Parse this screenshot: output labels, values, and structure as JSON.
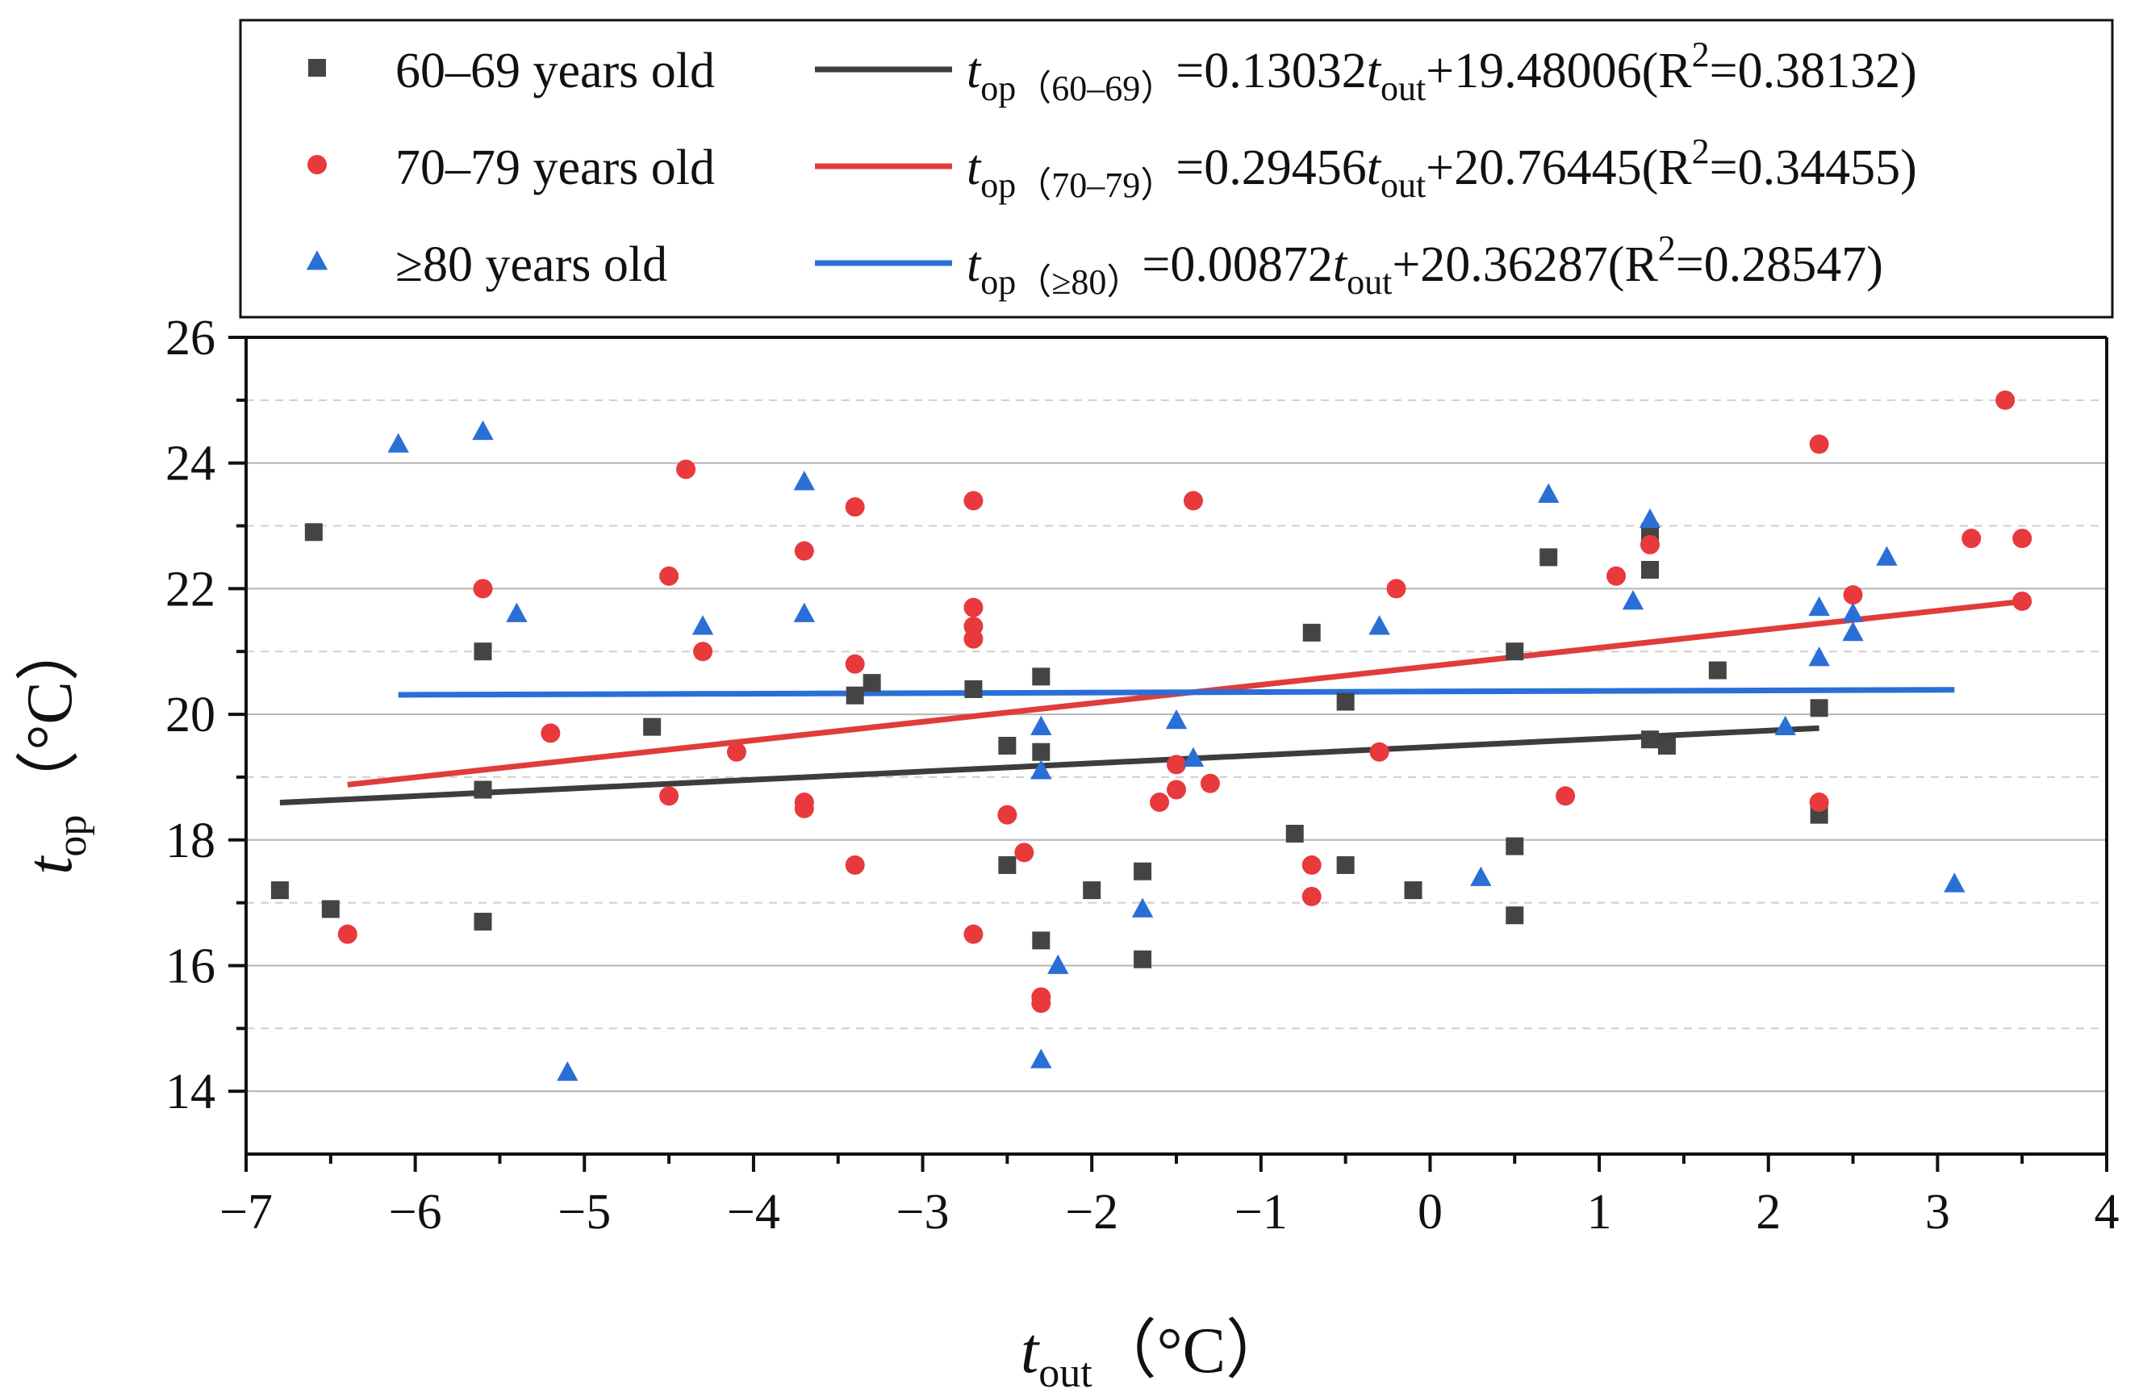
{
  "chart_data": {
    "type": "scatter",
    "x_axis": {
      "title_main": "t",
      "title_sub": "out",
      "unit": "（°C）",
      "range": [
        -7,
        4
      ],
      "ticks": [
        -7,
        -6,
        -5,
        -4,
        -3,
        -2,
        -1,
        0,
        1,
        2,
        3,
        4
      ],
      "tick_labels": [
        "−7",
        "−6",
        "−5",
        "−4",
        "−3",
        "−2",
        "−1",
        "0",
        "1",
        "2",
        "3",
        "4"
      ]
    },
    "y_axis": {
      "title_main": "t",
      "title_sub": "op",
      "unit": "（°C）",
      "range": [
        13,
        26
      ],
      "ticks": [
        14,
        16,
        18,
        20,
        22,
        24,
        26
      ],
      "tick_labels": [
        "14",
        "16",
        "18",
        "20",
        "22",
        "24",
        "26"
      ],
      "minor_ticks": [
        15,
        17,
        19,
        21,
        23,
        25
      ]
    },
    "grid": "horizontal",
    "legend_position": "top",
    "series": [
      {
        "name": "60–69 years old",
        "marker": "square",
        "color": "#444444",
        "fit_color": "#3d3d3d",
        "fit": {
          "sub": "（60–69）",
          "coef": "=0.13032",
          "intercept": "+19.48006(R",
          "r2": "=0.38132)",
          "slope": 0.13032,
          "b": 19.48006,
          "x_range": [
            -6.8,
            2.3
          ]
        },
        "points": [
          [
            -6.8,
            17.2
          ],
          [
            -6.6,
            22.9
          ],
          [
            -6.5,
            16.9
          ],
          [
            -5.6,
            21.0
          ],
          [
            -5.6,
            18.8
          ],
          [
            -5.6,
            16.7
          ],
          [
            -4.6,
            19.8
          ],
          [
            -3.4,
            20.3
          ],
          [
            -3.3,
            20.5
          ],
          [
            -2.7,
            20.4
          ],
          [
            -2.5,
            19.5
          ],
          [
            -2.5,
            17.6
          ],
          [
            -2.3,
            20.6
          ],
          [
            -2.3,
            19.4
          ],
          [
            -2.3,
            16.4
          ],
          [
            -2.0,
            17.2
          ],
          [
            -1.7,
            17.5
          ],
          [
            -1.7,
            16.1
          ],
          [
            -0.8,
            18.1
          ],
          [
            -0.7,
            21.3
          ],
          [
            -0.5,
            20.2
          ],
          [
            -0.5,
            17.6
          ],
          [
            -0.1,
            17.2
          ],
          [
            0.5,
            21.0
          ],
          [
            0.5,
            17.9
          ],
          [
            0.5,
            16.8
          ],
          [
            0.7,
            22.5
          ],
          [
            1.3,
            22.9
          ],
          [
            1.3,
            22.3
          ],
          [
            1.3,
            19.6
          ],
          [
            1.4,
            19.5
          ],
          [
            1.7,
            20.7
          ],
          [
            2.3,
            20.1
          ],
          [
            2.3,
            18.4
          ]
        ]
      },
      {
        "name": "70–79 years old",
        "marker": "circle",
        "color": "#e8393c",
        "fit_color": "#e03c3c",
        "fit": {
          "sub": "（70–79）",
          "coef": "=0.29456",
          "intercept": "+20.76445(R",
          "r2": "=0.34455)",
          "slope": 0.29456,
          "b": 20.76445,
          "x_range": [
            -6.4,
            3.5
          ]
        },
        "points": [
          [
            -6.4,
            16.5
          ],
          [
            -5.6,
            22.0
          ],
          [
            -5.2,
            19.7
          ],
          [
            -4.5,
            22.2
          ],
          [
            -4.5,
            18.7
          ],
          [
            -4.4,
            23.9
          ],
          [
            -4.3,
            21.0
          ],
          [
            -4.1,
            19.4
          ],
          [
            -3.7,
            22.6
          ],
          [
            -3.7,
            18.6
          ],
          [
            -3.7,
            18.5
          ],
          [
            -3.4,
            23.3
          ],
          [
            -3.4,
            20.8
          ],
          [
            -3.4,
            17.6
          ],
          [
            -2.7,
            23.4
          ],
          [
            -2.7,
            21.7
          ],
          [
            -2.7,
            21.4
          ],
          [
            -2.7,
            21.2
          ],
          [
            -2.7,
            16.5
          ],
          [
            -2.5,
            18.4
          ],
          [
            -2.4,
            17.8
          ],
          [
            -2.3,
            15.5
          ],
          [
            -2.3,
            15.4
          ],
          [
            -1.6,
            18.6
          ],
          [
            -1.5,
            19.2
          ],
          [
            -1.5,
            18.8
          ],
          [
            -1.4,
            23.4
          ],
          [
            -1.3,
            18.9
          ],
          [
            -0.7,
            17.6
          ],
          [
            -0.7,
            17.1
          ],
          [
            -0.3,
            19.4
          ],
          [
            -0.2,
            22.0
          ],
          [
            0.8,
            18.7
          ],
          [
            1.1,
            22.2
          ],
          [
            1.3,
            22.7
          ],
          [
            2.3,
            24.3
          ],
          [
            2.3,
            18.6
          ],
          [
            2.5,
            21.9
          ],
          [
            3.2,
            22.8
          ],
          [
            3.4,
            25.0
          ],
          [
            3.5,
            22.8
          ],
          [
            3.5,
            21.8
          ]
        ]
      },
      {
        "name": "≥80 years old",
        "marker": "triangle",
        "color": "#2a6fd6",
        "fit_color": "#2a6fd6",
        "fit": {
          "sub": "（≥80）",
          "coef": "=0.00872",
          "intercept": "+20.36287(R",
          "r2": "=0.28547)",
          "slope": 0.00872,
          "b": 20.36287,
          "x_range": [
            -6.1,
            3.1
          ]
        },
        "points": [
          [
            -6.1,
            24.3
          ],
          [
            -5.6,
            24.5
          ],
          [
            -5.4,
            21.6
          ],
          [
            -5.1,
            14.3
          ],
          [
            -4.3,
            21.4
          ],
          [
            -3.7,
            23.7
          ],
          [
            -3.7,
            21.6
          ],
          [
            -2.3,
            19.8
          ],
          [
            -2.3,
            19.1
          ],
          [
            -2.3,
            14.5
          ],
          [
            -2.2,
            16.0
          ],
          [
            -1.7,
            16.9
          ],
          [
            -1.5,
            19.9
          ],
          [
            -1.4,
            19.3
          ],
          [
            -0.3,
            21.4
          ],
          [
            0.3,
            17.4
          ],
          [
            0.7,
            23.5
          ],
          [
            1.2,
            21.8
          ],
          [
            1.3,
            23.1
          ],
          [
            2.1,
            19.8
          ],
          [
            2.3,
            21.7
          ],
          [
            2.3,
            20.9
          ],
          [
            2.5,
            21.6
          ],
          [
            2.5,
            21.3
          ],
          [
            2.7,
            22.5
          ],
          [
            3.1,
            17.3
          ]
        ]
      }
    ],
    "equation_parts": {
      "t": "t",
      "op": "op",
      "out": "out",
      "sup2": "2"
    }
  }
}
